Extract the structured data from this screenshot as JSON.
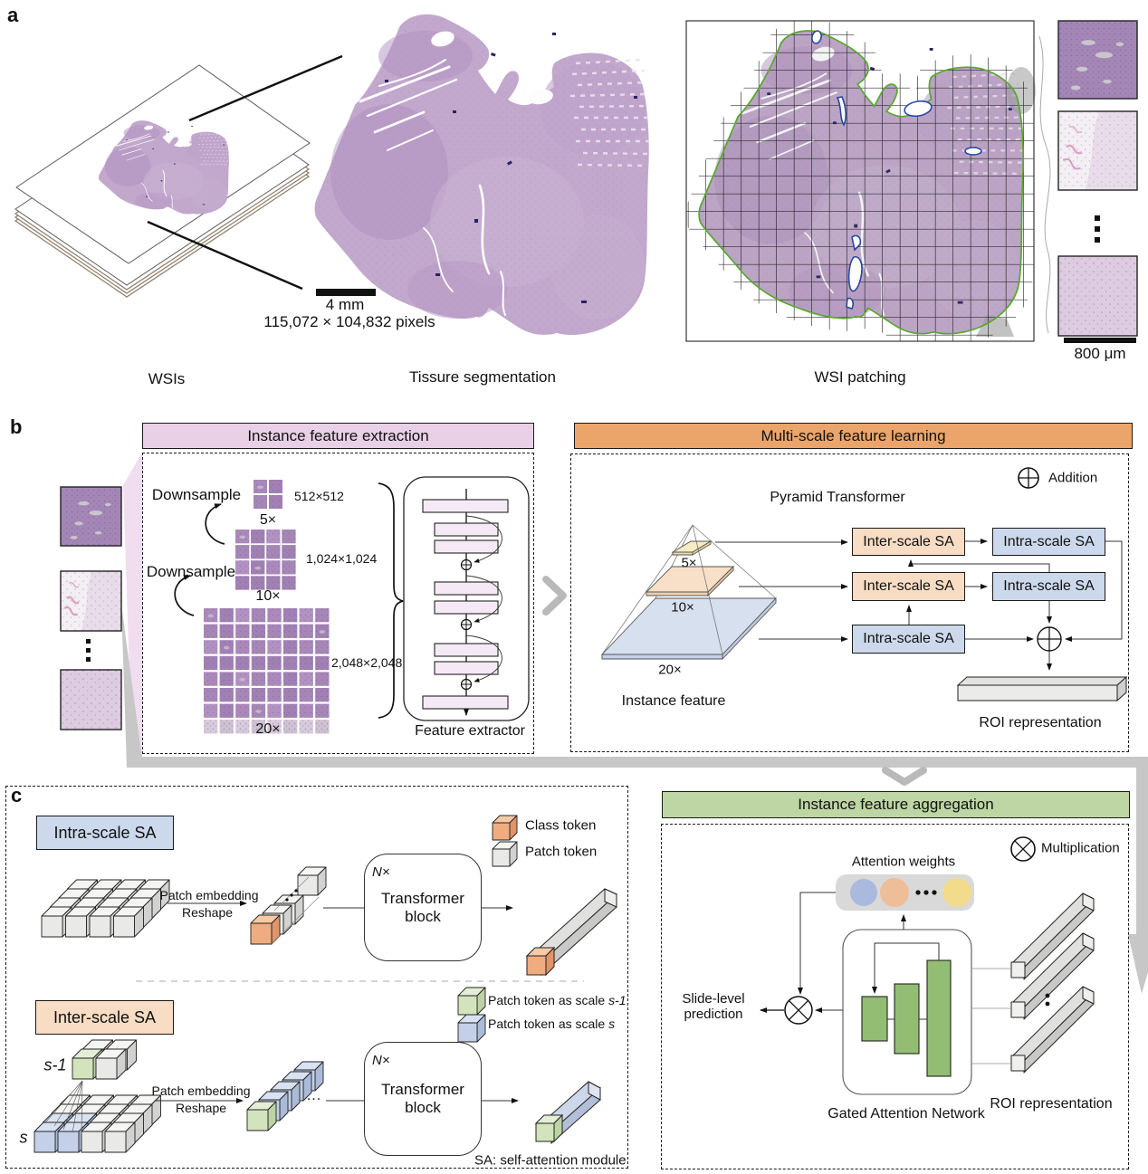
{
  "panel_a": {
    "label": "a",
    "captions": {
      "wsis": "WSIs",
      "segmentation": "Tissure segmentation",
      "patching": "WSI patching"
    },
    "scale_bar_mm": "4 mm",
    "pixel_dimensions": "115,072 × 104,832 pixels",
    "scale_bar_um": "800 μm"
  },
  "panel_b": {
    "label": "b",
    "extraction": {
      "title": "Instance feature extraction",
      "downsample": "Downsample",
      "sizes": {
        "s512": "512×512",
        "s1024": "1,024×1,024",
        "s2048": "2,048×2,048"
      },
      "mags": {
        "m5": "5×",
        "m10": "10×",
        "m20": "20×"
      },
      "feature_extractor": "Feature extractor"
    },
    "learning": {
      "title": "Multi-scale feature learning",
      "addition_legend": "Addition",
      "pyramid_title": "Pyramid Transformer",
      "mags": {
        "m5": "5×",
        "m10": "10×",
        "m20": "20×"
      },
      "instance_feature": "Instance feature",
      "inter_scale_sa": "Inter-scale SA",
      "intra_scale_sa": "Intra-scale SA",
      "roi_representation": "ROI representation"
    }
  },
  "panel_c": {
    "label": "c",
    "intra": {
      "title": "Intra-scale SA",
      "patch_embedding": "Patch embedding",
      "reshape": "Reshape",
      "n_times": "N×",
      "transformer_line1": "Transformer",
      "transformer_line2": "block",
      "legend_class_token": "Class token",
      "legend_patch_token": "Patch token",
      "ellipsis": "..."
    },
    "inter": {
      "title": "Inter-scale SA",
      "scale_prev": "s-1",
      "scale_cur": "s",
      "patch_embedding": "Patch embedding",
      "reshape": "Reshape",
      "n_times": "N×",
      "transformer_line1": "Transformer",
      "transformer_line2": "block",
      "legend_patch_prev_text": "Patch token as scale ",
      "legend_patch_prev_var": "s-1",
      "legend_patch_cur_text": "Patch token as scale ",
      "legend_patch_cur_var": "s",
      "ellipsis": "..."
    },
    "sa_note": "SA: self-attention module",
    "aggregation": {
      "title": "Instance feature aggregation",
      "multiplication_legend": "Multiplication",
      "attention_weights": "Attention weights",
      "slide_level_line1": "Slide-level",
      "slide_level_line2": "prediction",
      "gated_attention_network": "Gated Attention Network",
      "roi_representation": "ROI representation"
    }
  },
  "colors": {
    "header_pink": "#e8d0e6",
    "header_orange": "#eba56a",
    "header_green": "#bdd6a4",
    "box_blue": "#ccd9ec",
    "box_peach": "#f8dcc3",
    "bar_pink": "#f6e9f6",
    "pyramid_yellow": "#f5ecc4",
    "pyramid_peach": "#f8dfc8",
    "pyramid_blue": "#d7e0ef",
    "green_bar": "#93bd73",
    "circle_blue": "#a9bade",
    "circle_orange": "#edbe97",
    "circle_yellow": "#f2dc8c",
    "cube_gray": "#e9e9e7",
    "cube_orange": "#efac80",
    "cube_green": "#d3e3bd",
    "cube_blue": "#c3d0e8",
    "tissue_purple": "#c2a8cc",
    "contour_green": "#58a82e",
    "contour_blue": "#2847a0",
    "flow_gray": "#c7c7c7"
  }
}
